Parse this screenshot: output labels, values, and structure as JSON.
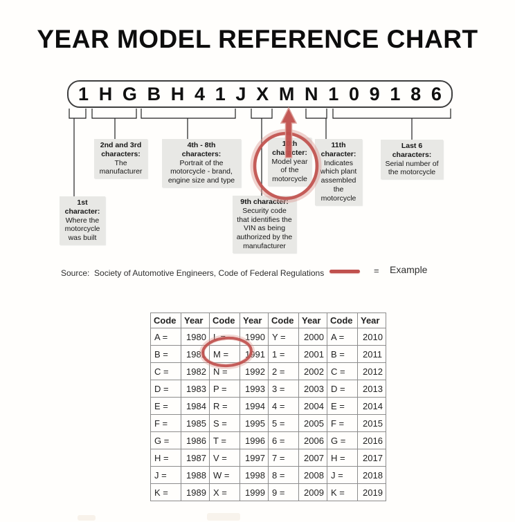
{
  "title": "YEAR MODEL REFERENCE CHART",
  "vin": {
    "characters": [
      "1",
      "H",
      "G",
      "B",
      "H",
      "4",
      "1",
      "J",
      "X",
      "M",
      "N",
      "1",
      "0",
      "9",
      "1",
      "8",
      "6"
    ]
  },
  "callouts": [
    {
      "title": "1st\ncharacter:",
      "body": "Where the\nmotorcycle\nwas built"
    },
    {
      "title": "2nd and 3rd\ncharacters:",
      "body": "The\nmanufacturer"
    },
    {
      "title": "4th - 8th\ncharacters:",
      "body": "Portrait of the\nmotorcycle - brand,\nengine size and type"
    },
    {
      "title": "9th character:",
      "body": "Security code\nthat identifies the\nVIN as being\nauthorized by the\nmanufacturer"
    },
    {
      "title": "10th\ncharacter:",
      "body": "Model year\nof the\nmotorcycle"
    },
    {
      "title": "11th\ncharacter:",
      "body": "Indicates\nwhich plant\nassembled\nthe\nmotorcycle"
    },
    {
      "title": "Last 6\ncharacters:",
      "body": "Serial number of\nthe motorcycle"
    }
  ],
  "source": {
    "text": "Source:  Society of Automotive Engineers, Code of Federal Regulations",
    "equals": "=",
    "example_label": "Example"
  },
  "colors": {
    "accent_red": "#c0504d",
    "accent_red_soft": "#dc9d96",
    "callout_bg": "#e8e8e5",
    "table_border": "#8c8c8c"
  },
  "table": {
    "headers": [
      "Code",
      "Year",
      "Code",
      "Year",
      "Code",
      "Year",
      "Code",
      "Year"
    ],
    "rows": [
      [
        "A =",
        "1980",
        "L =",
        "1990",
        "Y =",
        "2000",
        "A =",
        "2010"
      ],
      [
        "B =",
        "1981",
        "M =",
        "1991",
        "1 =",
        "2001",
        "B =",
        "2011"
      ],
      [
        "C =",
        "1982",
        "N =",
        "1992",
        "2 =",
        "2002",
        "C =",
        "2012"
      ],
      [
        "D =",
        "1983",
        "P =",
        "1993",
        "3 =",
        "2003",
        "D =",
        "2013"
      ],
      [
        "E =",
        "1984",
        "R =",
        "1994",
        "4 =",
        "2004",
        "E =",
        "2014"
      ],
      [
        "F =",
        "1985",
        "S =",
        "1995",
        "5 =",
        "2005",
        "F =",
        "2015"
      ],
      [
        "G =",
        "1986",
        "T =",
        "1996",
        "6 =",
        "2006",
        "G =",
        "2016"
      ],
      [
        "H =",
        "1987",
        "V =",
        "1997",
        "7 =",
        "2007",
        "H =",
        "2017"
      ],
      [
        "J =",
        "1988",
        "W =",
        "1998",
        "8 =",
        "2008",
        "J =",
        "2018"
      ],
      [
        "K =",
        "1989",
        "X =",
        "1999",
        "9 =",
        "2009",
        "K =",
        "2019"
      ]
    ],
    "highlighted_example": "M = 1991"
  }
}
